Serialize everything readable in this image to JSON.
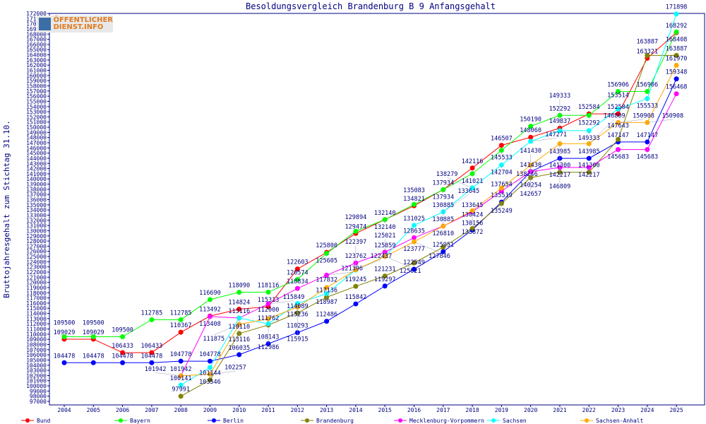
{
  "logo_text": "ÖFFENTLICHER DIENST.INFO",
  "chart_data": {
    "type": "line",
    "title": "Besoldungsvergleich Brandenburg B 9 Anfangsgehalt",
    "ylabel": "Bruttojahresgehalt zum Stichtag 31.10.",
    "xlabel": "",
    "ylim": [
      97000,
      172000
    ],
    "ytick_step": 1000,
    "grid": false,
    "legend_position": "bottom",
    "x": [
      2004,
      2005,
      2006,
      2007,
      2008,
      2009,
      2010,
      2011,
      2012,
      2013,
      2014,
      2015,
      2016,
      2017,
      2018,
      2019,
      2020,
      2021,
      2022,
      2023,
      2024,
      2025
    ],
    "series": [
      {
        "name": "Bund",
        "color": "#ff0000",
        "values": [
          109029,
          109029,
          106433,
          106433,
          110367,
          113492,
          114824,
          115313,
          122603,
          125800,
          129474,
          132140,
          134821,
          137934,
          142116,
          146507,
          148060,
          149837,
          152584,
          152584,
          163321,
          168292
        ]
      },
      {
        "name": "Bayern",
        "color": "#00ff00",
        "values": [
          109500,
          109500,
          109500,
          112785,
          112785,
          116690,
          118090,
          118116,
          120574,
          125605,
          129894,
          132140,
          135083,
          137934,
          141021,
          145533,
          150190,
          152292,
          152292,
          156906,
          156906,
          168408
        ]
      },
      {
        "name": "Berlin",
        "color": "#0000ff",
        "values": [
          104478,
          104478,
          104478,
          104478,
          104778,
          104778,
          106035,
          108143,
          110293,
          112486,
          115842,
          119297,
          122549,
          125951,
          130156,
          135519,
          141430,
          143985,
          143985,
          147147,
          147147,
          159348
        ]
      },
      {
        "name": "Brandenburg",
        "color": "#808000",
        "values": [
          null,
          null,
          null,
          null,
          97991,
          101144,
          110110,
          111762,
          114089,
          117136,
          119245,
          121231,
          123777,
          126810,
          130424,
          135249,
          140254,
          141300,
          141300,
          147643,
          163887,
          163887
        ]
      },
      {
        "name": "Mecklenburg-Vorpommern",
        "color": "#ff00ff",
        "values": [
          null,
          null,
          null,
          null,
          101942,
          113408,
          113116,
          115849,
          118834,
          121396,
          123762,
          125859,
          128635,
          130885,
          133645,
          137654,
          141430,
          142217,
          142217,
          145683,
          145683,
          156468
        ]
      },
      {
        "name": "Sachsen",
        "color": "#00ffff",
        "values": [
          null,
          null,
          null,
          null,
          100141,
          103546,
          113116,
          112000,
          115915,
          117832,
          122397,
          125021,
          131025,
          133645,
          138279,
          142704,
          147271,
          149333,
          149333,
          153514,
          155533,
          171898
        ]
      },
      {
        "name": "Sachsen-Anhalt",
        "color": "#ffaa00",
        "values": [
          null,
          null,
          null,
          null,
          101942,
          102257,
          111875,
          112986,
          115236,
          118987,
          122437,
          125021,
          127846,
          130885,
          133872,
          138246,
          142657,
          146809,
          146809,
          150908,
          150908,
          161970
        ]
      }
    ]
  }
}
